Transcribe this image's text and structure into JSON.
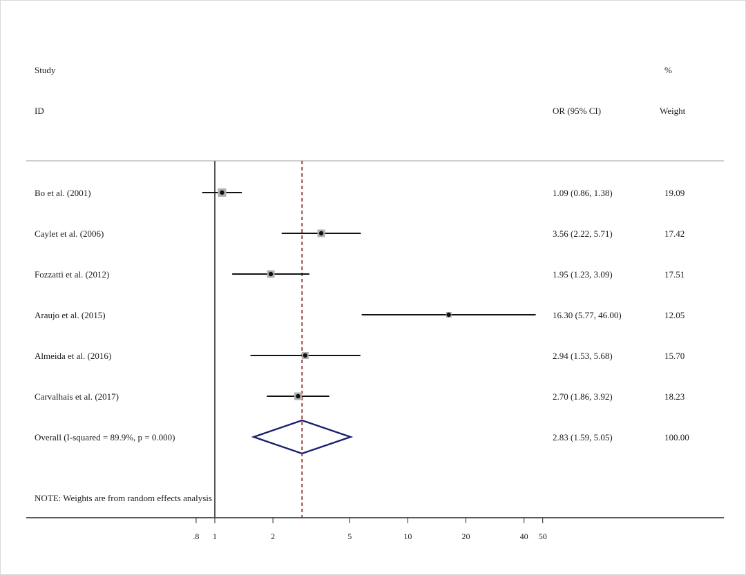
{
  "chart_data": {
    "type": "forest",
    "x_scale": "log",
    "xlim": [
      0.8,
      50
    ],
    "ticks": [
      {
        "value": 0.8,
        "label": ".8"
      },
      {
        "value": 1,
        "label": "1"
      },
      {
        "value": 2,
        "label": "2"
      },
      {
        "value": 5,
        "label": "5"
      },
      {
        "value": 10,
        "label": "10"
      },
      {
        "value": 20,
        "label": "20"
      },
      {
        "value": 40,
        "label": "40"
      },
      {
        "value": 50,
        "label": "50"
      }
    ],
    "null_line": 1,
    "overall_line": 2.83,
    "headers": {
      "study_top": "Study",
      "study_bottom": "ID",
      "or": "OR (95% CI)",
      "weight_top": "%",
      "weight_bottom": "Weight"
    },
    "studies": [
      {
        "name": "Bo et al. (2001)",
        "or": 1.09,
        "lo": 0.86,
        "hi": 1.38,
        "or_text": "1.09 (0.86, 1.38)",
        "weight": "19.09",
        "box": 12
      },
      {
        "name": "Caylet et al. (2006)",
        "or": 3.56,
        "lo": 2.22,
        "hi": 5.71,
        "or_text": "3.56 (2.22, 5.71)",
        "weight": "17.42",
        "box": 11
      },
      {
        "name": "Fozzatti et al. (2012)",
        "or": 1.95,
        "lo": 1.23,
        "hi": 3.09,
        "or_text": "1.95 (1.23, 3.09)",
        "weight": "17.51",
        "box": 11
      },
      {
        "name": "Araujo et al. (2015)",
        "or": 16.3,
        "lo": 5.77,
        "hi": 46.0,
        "or_text": "16.30 (5.77, 46.00)",
        "weight": "12.05",
        "box": 8
      },
      {
        "name": "Almeida et al. (2016)",
        "or": 2.94,
        "lo": 1.53,
        "hi": 5.68,
        "or_text": "2.94 (1.53, 5.68)",
        "weight": "15.70",
        "box": 10
      },
      {
        "name": "Carvalhais et al. (2017)",
        "or": 2.7,
        "lo": 1.86,
        "hi": 3.92,
        "or_text": "2.70 (1.86, 3.92)",
        "weight": "18.23",
        "box": 11
      }
    ],
    "overall": {
      "name": "Overall  (I-squared = 89.9%, p = 0.000)",
      "or": 2.83,
      "lo": 1.59,
      "hi": 5.05,
      "or_text": "2.83 (1.59, 5.05)",
      "weight": "100.00"
    },
    "note": "NOTE: Weights are from random effects analysis",
    "colors": {
      "diamond": "#1a1f6e",
      "overall_line": "#8b1a1a",
      "box": "#b0b0b0",
      "ci": "#111111"
    }
  }
}
